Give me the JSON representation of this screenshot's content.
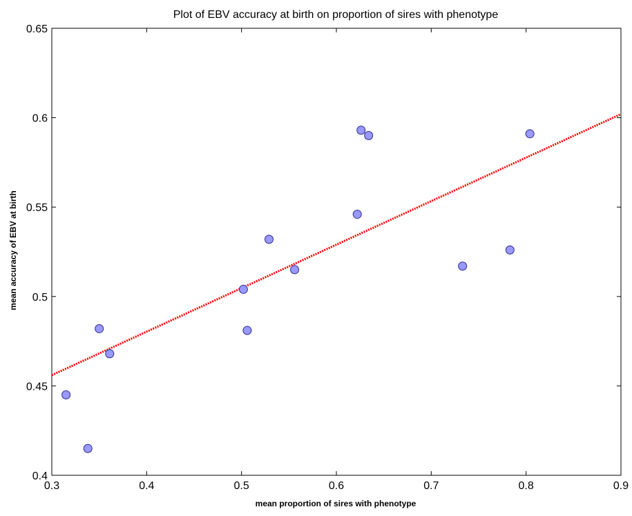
{
  "chart_data": {
    "type": "scatter",
    "title": "Plot of EBV accuracy at birth on proportion of sires with phenotype",
    "xlabel": "mean proportion of sires with phenotype",
    "ylabel": "mean accuracy of EBV at birth",
    "xlim": [
      0.3,
      0.9
    ],
    "ylim": [
      0.4,
      0.65
    ],
    "xticks": [
      0.3,
      0.4,
      0.5,
      0.6,
      0.7,
      0.8,
      0.9
    ],
    "xtick_labels": [
      "0.3",
      "0.4",
      "0.5",
      "0.6",
      "0.7",
      "0.8",
      "0.9"
    ],
    "yticks": [
      0.4,
      0.45,
      0.5,
      0.55,
      0.6,
      0.65
    ],
    "ytick_labels": [
      "0.4",
      "0.45",
      "0.5",
      "0.55",
      "0.6",
      "0.65"
    ],
    "grid": false,
    "points": [
      {
        "x": 0.315,
        "y": 0.445
      },
      {
        "x": 0.338,
        "y": 0.415
      },
      {
        "x": 0.35,
        "y": 0.482
      },
      {
        "x": 0.361,
        "y": 0.468
      },
      {
        "x": 0.502,
        "y": 0.504
      },
      {
        "x": 0.506,
        "y": 0.481
      },
      {
        "x": 0.529,
        "y": 0.532
      },
      {
        "x": 0.556,
        "y": 0.515
      },
      {
        "x": 0.622,
        "y": 0.546
      },
      {
        "x": 0.626,
        "y": 0.593
      },
      {
        "x": 0.634,
        "y": 0.59
      },
      {
        "x": 0.733,
        "y": 0.517
      },
      {
        "x": 0.783,
        "y": 0.526
      },
      {
        "x": 0.804,
        "y": 0.591
      }
    ],
    "trendline": {
      "x": [
        0.3,
        0.9
      ],
      "y": [
        0.456,
        0.602
      ]
    },
    "colors": {
      "marker_fill": "#9999ff",
      "marker_stroke": "#2a2a8a",
      "trendline": "#ff0000",
      "axes": "#000000"
    }
  }
}
